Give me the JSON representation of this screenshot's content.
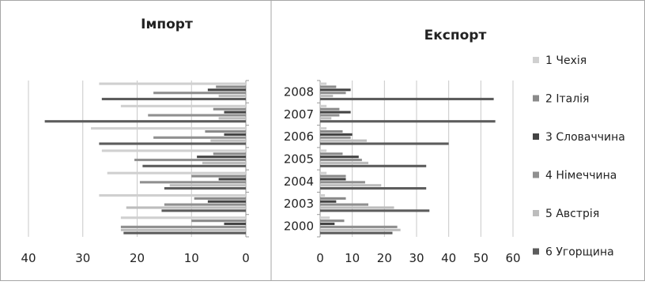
{
  "chart_data": [
    {
      "type": "bar",
      "orientation": "horizontal",
      "title": "Імпорт",
      "x_reversed": true,
      "xlim": [
        0,
        40
      ],
      "x_ticks": [
        "40",
        "30",
        "20",
        "10",
        "0"
      ],
      "categories": [
        "2008",
        "2007",
        "2006",
        "2005",
        "2004",
        "2003",
        "2000"
      ],
      "grid": true,
      "series": [
        {
          "name": "1 Чехія",
          "color": "#d0d0d0",
          "values": [
            27,
            23,
            28.5,
            26.5,
            25.5,
            27,
            23
          ]
        },
        {
          "name": "2 Італія",
          "color": "#8a8a8a",
          "values": [
            5.5,
            6,
            7.5,
            6,
            10,
            9.5,
            10
          ]
        },
        {
          "name": "3 Словаччина",
          "color": "#444444",
          "values": [
            7,
            4,
            4,
            9,
            5,
            7,
            4
          ]
        },
        {
          "name": "4 Німеччина",
          "color": "#909090",
          "values": [
            17,
            18,
            17,
            20.5,
            19.5,
            15,
            23
          ]
        },
        {
          "name": "5 Австрія",
          "color": "#bdbdbd",
          "values": [
            5,
            5,
            6.5,
            8,
            14,
            22,
            23
          ]
        },
        {
          "name": "6 Угорщина",
          "color": "#5c5c5c",
          "values": [
            26.5,
            37,
            27,
            19,
            15,
            15.5,
            22.5
          ]
        }
      ]
    },
    {
      "type": "bar",
      "orientation": "horizontal",
      "title": "Експорт",
      "xlim": [
        0,
        60
      ],
      "x_ticks": [
        "0",
        "10",
        "20",
        "30",
        "40",
        "50",
        "60"
      ],
      "categories": [
        "2008",
        "2007",
        "2006",
        "2005",
        "2004",
        "2003",
        "2000"
      ],
      "grid": true,
      "legend_position": "right",
      "series": [
        {
          "name": "1 Чехія",
          "color": "#d0d0d0",
          "values": [
            2,
            2,
            2,
            2,
            2,
            1.5,
            3
          ]
        },
        {
          "name": "2 Італія",
          "color": "#8a8a8a",
          "values": [
            5,
            6,
            7,
            7,
            8,
            8,
            7.5
          ]
        },
        {
          "name": "3 Словаччина",
          "color": "#444444",
          "values": [
            9.5,
            9.5,
            10,
            12,
            8,
            5,
            4.5
          ]
        },
        {
          "name": "4 Німеччина",
          "color": "#909090",
          "values": [
            8,
            6,
            9.5,
            13,
            14,
            15,
            24
          ]
        },
        {
          "name": "5 Австрія",
          "color": "#bdbdbd",
          "values": [
            4,
            3.5,
            14.5,
            15,
            19,
            23,
            25
          ]
        },
        {
          "name": "6 Угорщина",
          "color": "#5c5c5c",
          "values": [
            54,
            54.5,
            40,
            33,
            33,
            34,
            22.5
          ]
        }
      ]
    }
  ]
}
